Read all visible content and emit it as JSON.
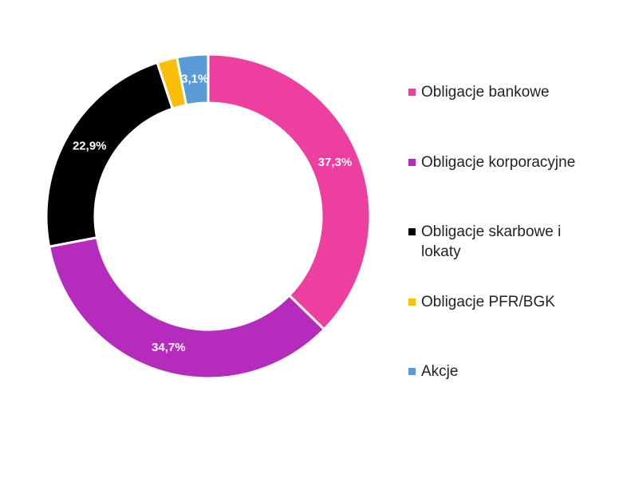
{
  "chart_data": {
    "type": "pie",
    "categories": [
      "Obligacje bankowe",
      "Obligacje korporacyjne",
      "Obligacje skarbowe i lokaty",
      "Obligacje PFR/BGK",
      "Akcje"
    ],
    "values": [
      37.3,
      34.7,
      22.9,
      2.0,
      3.1
    ],
    "value_labels": [
      "37,3%",
      "34,7%",
      "22,9%",
      null,
      "3,1%"
    ],
    "colors": [
      "#ec3fa0",
      "#b52bbb",
      "#000000",
      "#fbbf0a",
      "#5b9bd5"
    ]
  }
}
